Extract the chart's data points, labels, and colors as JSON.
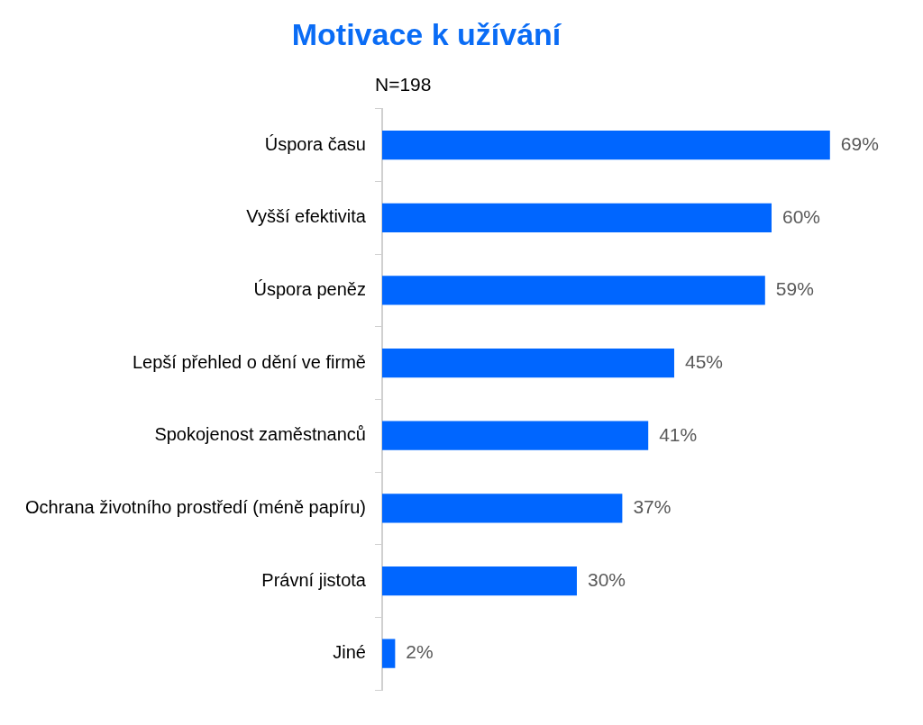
{
  "chart_data": {
    "type": "bar",
    "orientation": "horizontal",
    "title": "Motivace k užívání",
    "subtitle": "N=198",
    "categories": [
      "Úspora času",
      "Vyšší efektivita",
      "Úspora peněz",
      "Lepší přehled o dění ve firmě",
      "Spokojenost zaměstnanců",
      "Ochrana životního prostředí (méně papíru)",
      "Právní jistota",
      "Jiné"
    ],
    "values": [
      69,
      60,
      59,
      45,
      41,
      37,
      30,
      2
    ],
    "value_labels": [
      "69%",
      "60%",
      "59%",
      "45%",
      "41%",
      "37%",
      "30%",
      "2%"
    ],
    "color": "#0066ff",
    "legend": false
  }
}
